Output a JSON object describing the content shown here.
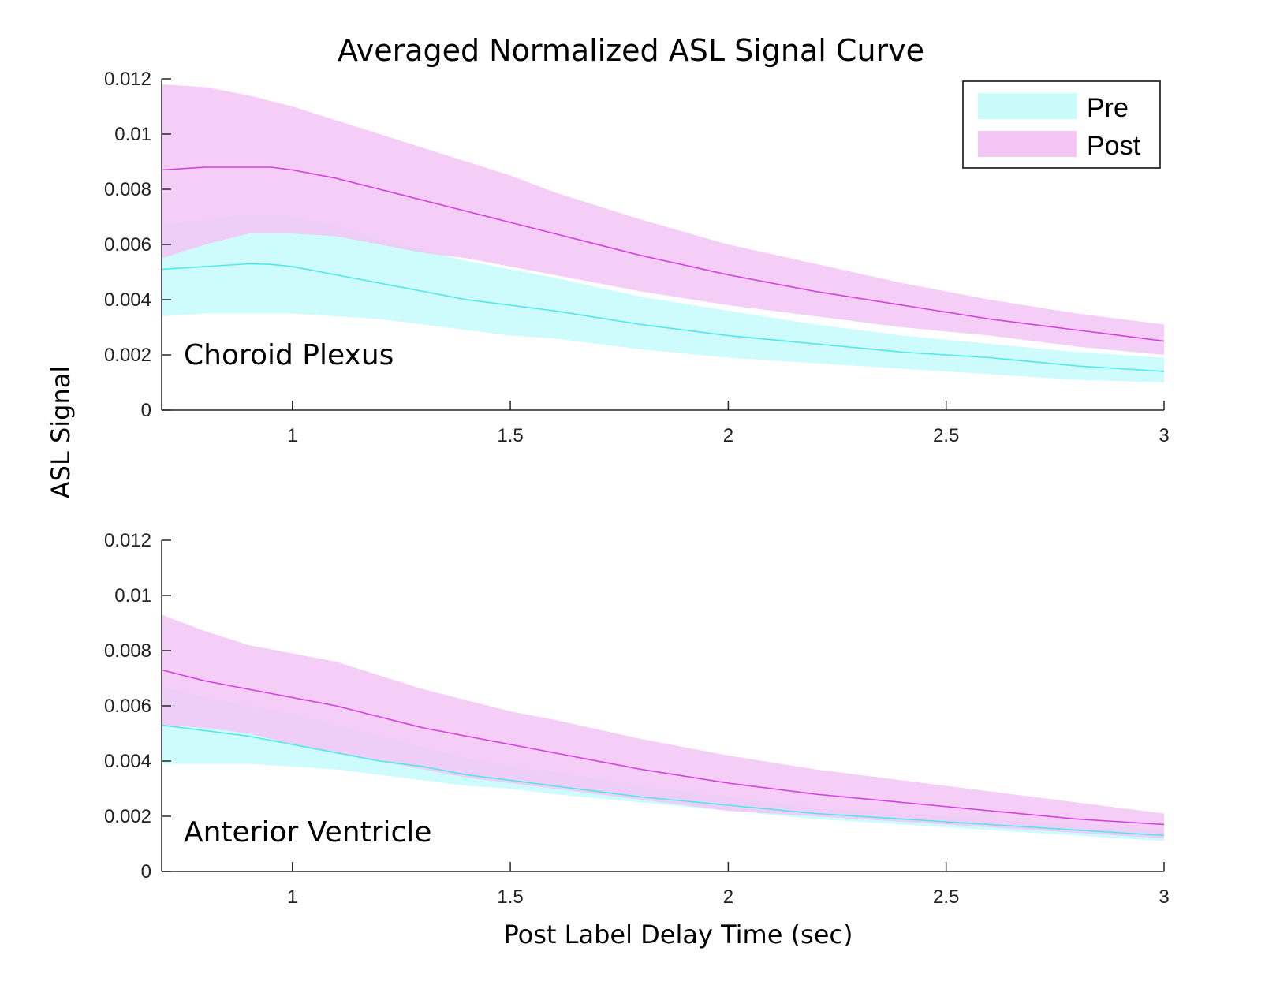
{
  "chart_data": {
    "type": "area",
    "title": "Averaged Normalized ASL Signal Curve",
    "xlabel": "Post Label Delay Time (sec)",
    "ylabel": "ASL Signal",
    "legend": {
      "placement": "top-right",
      "entries": [
        {
          "name": "Pre",
          "color": "#c9fbfb"
        },
        {
          "name": "Post",
          "color": "#f3c6f6"
        }
      ]
    },
    "colors": {
      "pre_band": "#c9fbfb",
      "pre_line": "#4de8ec",
      "post_band": "#f3c6f6",
      "post_line": "#d43fe0"
    },
    "panels": [
      {
        "label": "Choroid Plexus",
        "xlim": [
          0.7,
          3.0
        ],
        "ylim": [
          0,
          0.012
        ],
        "xticks": [
          1,
          1.5,
          2,
          2.5,
          3
        ],
        "xtick_labels": [
          "1",
          "1.5",
          "2",
          "2.5",
          "3"
        ],
        "yticks": [
          0,
          0.002,
          0.004,
          0.006,
          0.008,
          0.01,
          0.012
        ],
        "ytick_labels": [
          "0",
          "0.002",
          "0.004",
          "0.006",
          "0.008",
          "0.01",
          "0.012"
        ],
        "x": [
          0.7,
          0.8,
          0.9,
          0.95,
          1.0,
          1.1,
          1.2,
          1.3,
          1.4,
          1.5,
          1.6,
          1.8,
          2.0,
          2.2,
          2.4,
          2.6,
          2.8,
          3.0
        ],
        "series": [
          {
            "name": "Pre",
            "mean": [
              0.0051,
              0.0052,
              0.0053,
              0.00528,
              0.0052,
              0.0049,
              0.0046,
              0.0043,
              0.004,
              0.0038,
              0.0036,
              0.0031,
              0.0027,
              0.0024,
              0.0021,
              0.0019,
              0.0016,
              0.0014
            ],
            "lower": [
              0.0034,
              0.0035,
              0.0035,
              0.0035,
              0.0035,
              0.0034,
              0.0033,
              0.0031,
              0.0029,
              0.0027,
              0.0026,
              0.0022,
              0.0019,
              0.0017,
              0.0015,
              0.0013,
              0.0011,
              0.001
            ],
            "upper": [
              0.0067,
              0.0069,
              0.0071,
              0.0071,
              0.007,
              0.0067,
              0.0062,
              0.0058,
              0.0054,
              0.0051,
              0.0048,
              0.0041,
              0.0036,
              0.0031,
              0.0027,
              0.0024,
              0.0021,
              0.0019
            ]
          },
          {
            "name": "Post",
            "mean": [
              0.0087,
              0.0088,
              0.0088,
              0.0088,
              0.0087,
              0.0084,
              0.008,
              0.0076,
              0.0072,
              0.0068,
              0.0064,
              0.0056,
              0.0049,
              0.0043,
              0.0038,
              0.0033,
              0.0029,
              0.0025
            ],
            "lower": [
              0.0055,
              0.006,
              0.0064,
              0.0064,
              0.0064,
              0.0063,
              0.006,
              0.0057,
              0.0055,
              0.0052,
              0.0049,
              0.0043,
              0.0038,
              0.0034,
              0.003,
              0.0027,
              0.0023,
              0.002
            ],
            "upper": [
              0.0118,
              0.0117,
              0.0114,
              0.0112,
              0.011,
              0.0105,
              0.01,
              0.0095,
              0.009,
              0.0085,
              0.0079,
              0.0069,
              0.006,
              0.0053,
              0.0046,
              0.004,
              0.0035,
              0.0031
            ]
          }
        ]
      },
      {
        "label": "Anterior Ventricle",
        "xlim": [
          0.7,
          3.0
        ],
        "ylim": [
          0,
          0.012
        ],
        "xticks": [
          1,
          1.5,
          2,
          2.5,
          3
        ],
        "xtick_labels": [
          "1",
          "1.5",
          "2",
          "2.5",
          "3"
        ],
        "yticks": [
          0,
          0.002,
          0.004,
          0.006,
          0.008,
          0.01,
          0.012
        ],
        "ytick_labels": [
          "0",
          "0.002",
          "0.004",
          "0.006",
          "0.008",
          "0.01",
          "0.012"
        ],
        "x": [
          0.7,
          0.8,
          0.9,
          1.0,
          1.1,
          1.2,
          1.3,
          1.4,
          1.5,
          1.6,
          1.8,
          2.0,
          2.2,
          2.4,
          2.6,
          2.8,
          3.0
        ],
        "series": [
          {
            "name": "Pre",
            "mean": [
              0.0053,
              0.0051,
              0.0049,
              0.0046,
              0.0043,
              0.004,
              0.0038,
              0.0035,
              0.0033,
              0.0031,
              0.0027,
              0.0024,
              0.0021,
              0.0019,
              0.0017,
              0.0015,
              0.0013
            ],
            "lower": [
              0.0039,
              0.0039,
              0.0039,
              0.0038,
              0.0037,
              0.0035,
              0.0033,
              0.0031,
              0.003,
              0.0028,
              0.0025,
              0.0022,
              0.0019,
              0.0017,
              0.0015,
              0.0013,
              0.0011
            ],
            "upper": [
              0.0067,
              0.0063,
              0.006,
              0.0057,
              0.0053,
              0.0049,
              0.0045,
              0.0041,
              0.0038,
              0.0036,
              0.0031,
              0.0027,
              0.0023,
              0.0021,
              0.0019,
              0.0017,
              0.0015
            ]
          },
          {
            "name": "Post",
            "mean": [
              0.0073,
              0.0069,
              0.0066,
              0.0063,
              0.006,
              0.0056,
              0.0052,
              0.0049,
              0.0046,
              0.0043,
              0.0037,
              0.0032,
              0.0028,
              0.0025,
              0.0022,
              0.0019,
              0.0017
            ],
            "lower": [
              0.0053,
              0.0052,
              0.005,
              0.0046,
              0.0043,
              0.004,
              0.0037,
              0.0034,
              0.0032,
              0.003,
              0.0026,
              0.0022,
              0.002,
              0.0018,
              0.0016,
              0.0014,
              0.0012
            ],
            "upper": [
              0.0093,
              0.0087,
              0.0082,
              0.0079,
              0.0076,
              0.0071,
              0.0066,
              0.0062,
              0.0058,
              0.0055,
              0.0048,
              0.0042,
              0.0037,
              0.0033,
              0.0029,
              0.0025,
              0.0021
            ]
          }
        ]
      }
    ]
  }
}
